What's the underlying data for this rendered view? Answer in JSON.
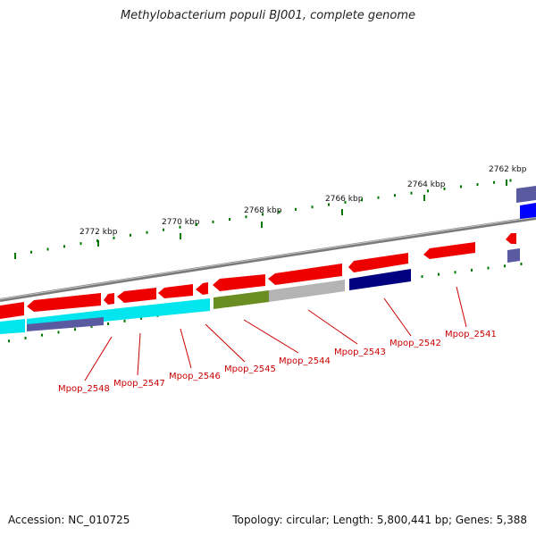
{
  "title": "Methylobacterium populi BJ001, complete genome",
  "footer": {
    "accession": "Accession: NC_010725",
    "summary": "Topology: circular; Length: 5,800,441 bp; Genes: 5,388"
  },
  "scale_labels": [
    "2772 kbp",
    "2770 kbp",
    "2768 kbp",
    "2766 kbp",
    "2764 kbp",
    "2762 kbp"
  ],
  "gene_labels": [
    "Mpop_2548",
    "Mpop_2547",
    "Mpop_2546",
    "Mpop_2545",
    "Mpop_2544",
    "Mpop_2543",
    "Mpop_2542",
    "Mpop_2541"
  ],
  "colors": {
    "forward_gene": "#ee0000",
    "cyan_gene": "#00e5ee",
    "navy_gene": "#000080",
    "olive_gene": "#6b8e23",
    "grey_gene": "#b4b4b4",
    "slate_gene": "#483d8b",
    "blue_gene": "#0000ff",
    "backbone": "#808080",
    "tick": "#007700",
    "label": "#cc0000"
  }
}
